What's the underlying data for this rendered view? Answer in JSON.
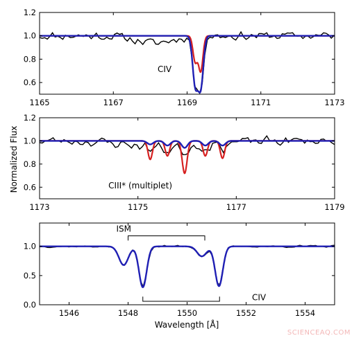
{
  "ylabel": "Normalized Flux",
  "xlabel": "Wavelength [Å]",
  "watermark": "SCIENCEAQ.COM",
  "colors": {
    "data": "#000000",
    "model_blue": "#1f1fb4",
    "model_red": "#d62020"
  },
  "chart_data": [
    {
      "type": "line",
      "xlim": [
        1165,
        1173
      ],
      "ylim": [
        0.5,
        1.2
      ],
      "xticks": [
        1165,
        1167,
        1169,
        1171,
        1173
      ],
      "yticks": [
        0.6,
        0.8,
        1.0,
        1.2
      ],
      "annotations": [
        {
          "text": "CIV",
          "x": 1168.2,
          "y": 0.69
        }
      ],
      "lines": [
        {
          "center": 1169.22,
          "depth": 0.41,
          "width": 0.07
        },
        {
          "center": 1169.37,
          "depth": 0.43,
          "width": 0.07
        }
      ],
      "red_lines": [
        {
          "center": 1169.22,
          "depth": 0.22,
          "width": 0.06
        },
        {
          "center": 1169.37,
          "depth": 0.3,
          "width": 0.06
        }
      ],
      "noise": {
        "x0": 1165,
        "x1": 1173,
        "step": 0.07,
        "amp": 0.045,
        "seed": 11,
        "dip_center": 1168.1,
        "dip_depth": 0.06,
        "dip_width": 0.5
      }
    },
    {
      "type": "line",
      "xlim": [
        1173,
        1179
      ],
      "ylim": [
        0.5,
        1.2
      ],
      "xticks": [
        1173,
        1175,
        1177,
        1179
      ],
      "yticks": [
        0.6,
        0.8,
        1.0,
        1.2
      ],
      "annotations": [
        {
          "text": "CIII* (multiplet)",
          "x": 1174.4,
          "y": 0.59
        }
      ],
      "lines": [
        {
          "center": 1175.25,
          "depth": 0.03,
          "width": 0.06
        },
        {
          "center": 1175.6,
          "depth": 0.04,
          "width": 0.06
        },
        {
          "center": 1175.95,
          "depth": 0.06,
          "width": 0.06
        },
        {
          "center": 1176.37,
          "depth": 0.04,
          "width": 0.06
        },
        {
          "center": 1176.72,
          "depth": 0.04,
          "width": 0.06
        }
      ],
      "red_lines": [
        {
          "center": 1175.25,
          "depth": 0.16,
          "width": 0.045
        },
        {
          "center": 1175.6,
          "depth": 0.13,
          "width": 0.045
        },
        {
          "center": 1175.95,
          "depth": 0.28,
          "width": 0.05
        },
        {
          "center": 1176.37,
          "depth": 0.13,
          "width": 0.045
        },
        {
          "center": 1176.72,
          "depth": 0.15,
          "width": 0.045
        }
      ],
      "noise": {
        "x0": 1173,
        "x1": 1179,
        "step": 0.055,
        "amp": 0.05,
        "seed": 23,
        "dip_center": 1175.6,
        "dip_depth": 0.05,
        "dip_width": 0.8
      }
    },
    {
      "type": "line",
      "xlim": [
        1545,
        1555
      ],
      "ylim": [
        0.0,
        1.4
      ],
      "xticks": [
        1546,
        1548,
        1550,
        1552,
        1554
      ],
      "yticks": [
        0.0,
        0.5,
        1.0
      ],
      "annotations": [
        {
          "text": "ISM",
          "x": 1547.6,
          "y": 1.25
        },
        {
          "text": "CIV",
          "x": 1552.2,
          "y": 0.08
        }
      ],
      "ism_bracket": {
        "x0": 1548.0,
        "x1": 1550.6,
        "y": 1.18,
        "tick": 0.08
      },
      "civ_bracket": {
        "x0": 1548.5,
        "x1": 1551.1,
        "y": 0.06,
        "tick": 0.08
      },
      "lines": [
        {
          "center": 1547.85,
          "depth": 0.32,
          "width": 0.16
        },
        {
          "center": 1548.5,
          "depth": 0.7,
          "width": 0.13
        },
        {
          "center": 1550.5,
          "depth": 0.17,
          "width": 0.16
        },
        {
          "center": 1551.08,
          "depth": 0.68,
          "width": 0.13
        }
      ],
      "noise": {
        "x0": 1545,
        "x1": 1555,
        "step": 0.09,
        "amp": 0.022,
        "seed": 37,
        "dip_center": 1549.5,
        "dip_depth": 0.0,
        "dip_width": 1.0
      }
    }
  ]
}
